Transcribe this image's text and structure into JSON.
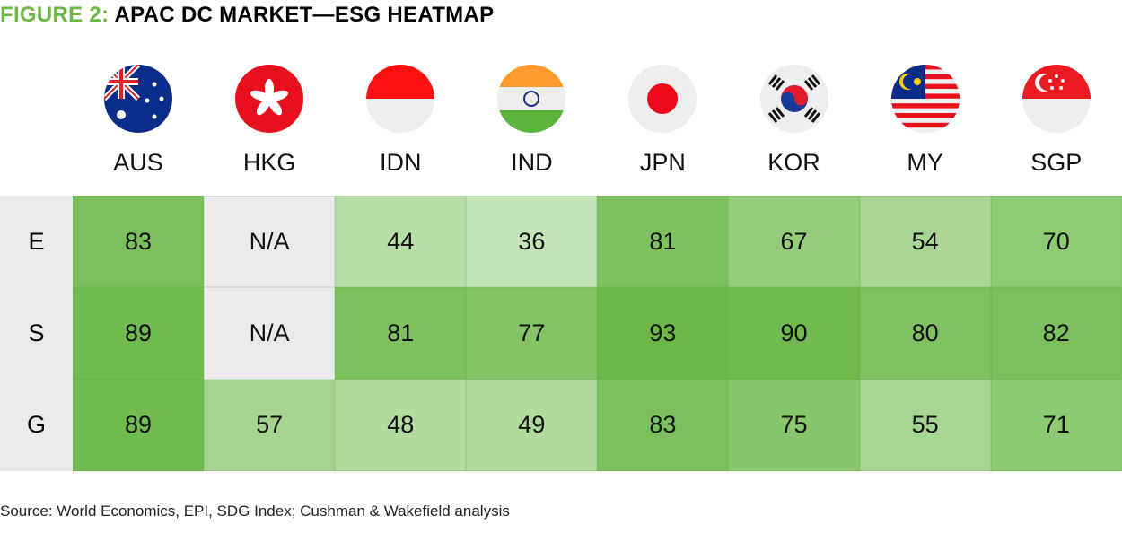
{
  "title_prefix": "FIGURE 2:",
  "title_main": "APAC DC MARKET—ESG HEATMAP",
  "source": "Source: World Economics, EPI, SDG Index; Cushman & Wakefield analysis",
  "colors": {
    "accent": "#6cb843",
    "na": "#eaeaec",
    "low": "#c5e4b8",
    "high": "#6bb848"
  },
  "chart_data": {
    "type": "heatmap",
    "title": "FIGURE 2: APAC DC MARKET—ESG HEATMAP",
    "columns": [
      "AUS",
      "HKG",
      "IDN",
      "IND",
      "JPN",
      "KOR",
      "MY",
      "SGP"
    ],
    "rows": [
      "E",
      "S",
      "G"
    ],
    "values": [
      [
        83,
        "N/A",
        44,
        36,
        81,
        67,
        54,
        70
      ],
      [
        89,
        "N/A",
        81,
        77,
        93,
        90,
        80,
        82
      ],
      [
        89,
        57,
        48,
        49,
        83,
        75,
        55,
        71
      ]
    ]
  }
}
